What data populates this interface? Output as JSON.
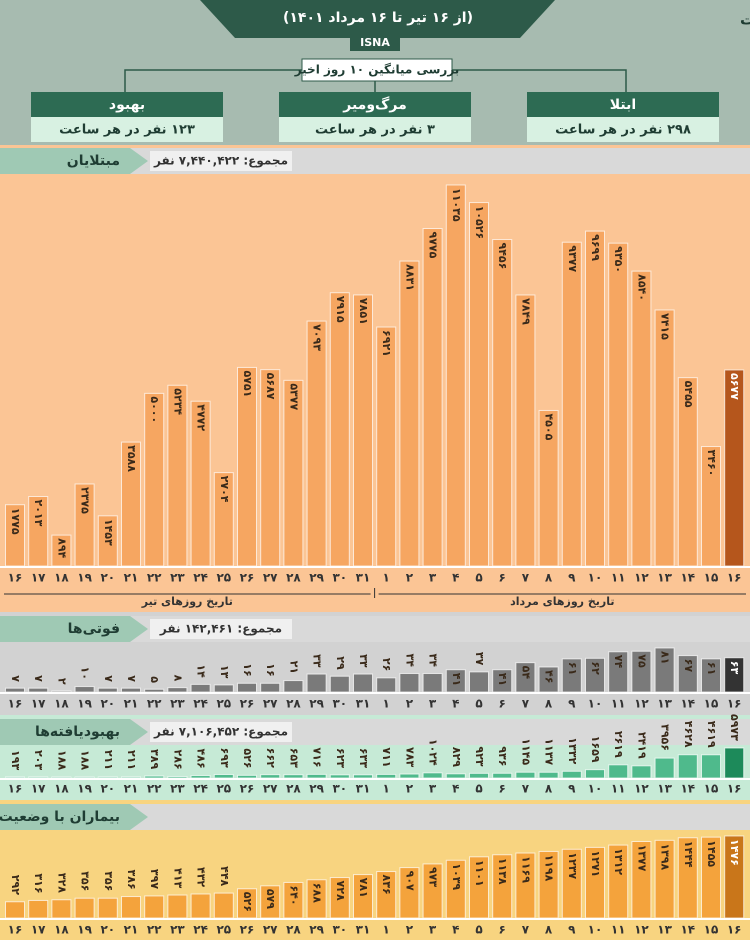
{
  "header": {
    "title": "اعداد بر حسب نفر است",
    "subtitle": "(از ۱۶ تیر تا ۱۶ مرداد ۱۴۰۱)",
    "source": "ISNA",
    "summary_title": "بررسی میانگین ۱۰ روز اخیر",
    "boxes": [
      {
        "label": "ابتلا",
        "text": "۲۹۸ نفر در هر ساعت"
      },
      {
        "label": "مرگ‌ومیر",
        "text": "۳ نفر در هر ساعت"
      },
      {
        "label": "بهبود",
        "text": "۱۲۳ نفر در هر ساعت"
      }
    ]
  },
  "chart_data": [
    {
      "type": "bar",
      "title": "مبتلایان",
      "total": "مجموع: ۷,۴۴۰,۴۲۲ نفر",
      "categories": [
        "۱۶",
        "۱۷",
        "۱۸",
        "۱۹",
        "۲۰",
        "۲۱",
        "۲۲",
        "۲۳",
        "۲۴",
        "۲۵",
        "۲۶",
        "۲۷",
        "۲۸",
        "۲۹",
        "۳۰",
        "۳۱",
        "۱",
        "۲",
        "۳",
        "۴",
        "۵",
        "۶",
        "۷",
        "۸",
        "۹",
        "۱۰",
        "۱۱",
        "۱۲",
        "۱۳",
        "۱۴",
        "۱۵",
        "۱۶"
      ],
      "values": [
        1775,
        2013,
        894,
        2375,
        1453,
        3588,
        5000,
        5234,
        4772,
        2704,
        5751,
        5687,
        5377,
        7093,
        7915,
        7851,
        6921,
        8831,
        9775,
        11035,
        10526,
        9456,
        7849,
        4505,
        9377,
        9699,
        9350,
        8540,
        7415,
        5455,
        3460,
        5677
      ],
      "value_labels": [
        "۱۷۷۵",
        "۲۰۱۳",
        "۸۹۴",
        "۲۳۷۵",
        "۱۴۵۳",
        "۳۵۸۸",
        "۵۰۰۰",
        "۵۲۳۴",
        "۴۷۷۲",
        "۲۷۰۴",
        "۵۷۵۱",
        "۵۶۸۷",
        "۵۳۷۷",
        "۷۰۹۳",
        "۷۹۱۵",
        "۷۸۵۱",
        "۶۹۲۱",
        "۸۸۳۱",
        "۹۷۷۵",
        "۱۱۰۳۵",
        "۱۰۵۲۶",
        "۹۴۵۶",
        "۷۸۴۹",
        "۴۵۰۵",
        "۹۳۷۷",
        "۹۶۹۹",
        "۹۳۵۰",
        "۸۵۴۰",
        "۷۴۱۵",
        "۵۴۵۵",
        "۳۴۶۰",
        "۵۶۷۷"
      ],
      "month_labels": [
        "تاریخ روزهای تیر",
        "تاریخ روزهای مرداد"
      ],
      "color": "#f6a661",
      "last_bar_color": "#b5561c",
      "background": "#fbc595"
    },
    {
      "type": "bar",
      "title": "فوتی‌ها",
      "total": "مجموع: ۱۴۲,۴۶۱ نفر",
      "categories": [
        "۱۶",
        "۱۷",
        "۱۸",
        "۱۹",
        "۲۰",
        "۲۱",
        "۲۲",
        "۲۳",
        "۲۴",
        "۲۵",
        "۲۶",
        "۲۷",
        "۲۸",
        "۲۹",
        "۳۰",
        "۳۱",
        "۱",
        "۲",
        "۳",
        "۴",
        "۵",
        "۶",
        "۷",
        "۸",
        "۹",
        "۱۰",
        "۱۱",
        "۱۲",
        "۱۳",
        "۱۴",
        "۱۵",
        "۱۶"
      ],
      "values": [
        7,
        7,
        2,
        10,
        7,
        7,
        5,
        8,
        14,
        13,
        16,
        16,
        21,
        33,
        29,
        33,
        26,
        34,
        34,
        41,
        37,
        41,
        54,
        46,
        61,
        62,
        74,
        75,
        81,
        67,
        61,
        63
      ],
      "value_labels": [
        "۷",
        "۷",
        "۲",
        "۱۰",
        "۷",
        "۷",
        "۵",
        "۸",
        "۱۴",
        "۱۳",
        "۱۶",
        "۱۶",
        "۲۱",
        "۳۳",
        "۲۹",
        "۳۳",
        "۲۶",
        "۳۴",
        "۳۴",
        "۴۱",
        "۳۷",
        "۴۱",
        "۵۴",
        "۴۶",
        "۶۱",
        "۶۲",
        "۷۴",
        "۷۵",
        "۸۱",
        "۶۷",
        "۶۱",
        "۶۳"
      ],
      "color": "#7a7a7a",
      "last_bar_color": "#333333",
      "background": "#d2d2d2"
    },
    {
      "type": "bar",
      "title": "بهبودیافته‌ها",
      "total": "مجموع: ۷,۱۰۶,۴۵۲ نفر",
      "categories": [
        "۱۶",
        "۱۷",
        "۱۸",
        "۱۹",
        "۲۰",
        "۲۱",
        "۲۲",
        "۲۳",
        "۲۴",
        "۲۵",
        "۲۶",
        "۲۷",
        "۲۸",
        "۲۹",
        "۳۰",
        "۳۱",
        "۱",
        "۲",
        "۳",
        "۴",
        "۵",
        "۶",
        "۷",
        "۸",
        "۹",
        "۱۰",
        "۱۱",
        "۱۲",
        "۱۳",
        "۱۴",
        "۱۵",
        "۱۶"
      ],
      "values": [
        193,
        203,
        188,
        188,
        211,
        211,
        389,
        286,
        486,
        693,
        526,
        662,
        653,
        716,
        623,
        633,
        711,
        783,
        1024,
        829,
        923,
        936,
        1145,
        1137,
        1332,
        1659,
        2619,
        2419,
        3956,
        4628,
        4619,
        5973
      ],
      "value_labels": [
        "۱۹۳",
        "۲۰۳",
        "۱۸۸",
        "۱۸۸",
        "۲۱۱",
        "۲۱۱",
        "۳۸۹",
        "۲۸۶",
        "۴۸۶",
        "۶۹۳",
        "۵۲۶",
        "۶۶۲",
        "۶۵۳",
        "۷۱۶",
        "۶۲۳",
        "۶۳۳",
        "۷۱۱",
        "۷۸۳",
        "۱۰۲۴",
        "۸۲۹",
        "۹۲۳",
        "۹۳۶",
        "۱۱۴۵",
        "۱۱۳۷",
        "۱۳۳۲",
        "۱۶۵۹",
        "۲۶۱۹",
        "۲۴۱۹",
        "۳۹۵۶",
        "۴۶۲۸",
        "۴۶۱۹",
        "۵۹۷۳"
      ],
      "color": "#4fba8c",
      "last_bar_color": "#1d8a5a",
      "background": "#c6ead6"
    },
    {
      "type": "bar",
      "title": "بیماران با وضعیت حاد",
      "categories": [
        "۱۶",
        "۱۷",
        "۱۸",
        "۱۹",
        "۲۰",
        "۲۱",
        "۲۲",
        "۲۳",
        "۲۴",
        "۲۵",
        "۲۶",
        "۲۷",
        "۲۸",
        "۲۹",
        "۳۰",
        "۳۱",
        "۱",
        "۲",
        "۳",
        "۴",
        "۵",
        "۶",
        "۷",
        "۸",
        "۹",
        "۱۰",
        "۱۱",
        "۱۲",
        "۱۳",
        "۱۴",
        "۱۵",
        "۱۶"
      ],
      "values": [
        292,
        316,
        328,
        356,
        356,
        386,
        397,
        413,
        432,
        448,
        526,
        579,
        640,
        688,
        728,
        781,
        836,
        907,
        973,
        1039,
        1101,
        1138,
        1169,
        1198,
        1237,
        1271,
        1312,
        1377,
        1398,
        1444,
        1455,
        1476
      ],
      "value_labels": [
        "۲۹۲",
        "۳۱۶",
        "۳۲۸",
        "۳۵۶",
        "۳۵۶",
        "۳۸۶",
        "۳۹۷",
        "۴۱۳",
        "۴۳۲",
        "۴۴۸",
        "۵۲۶",
        "۵۷۹",
        "۶۴۰",
        "۶۸۸",
        "۷۲۸",
        "۷۸۱",
        "۸۳۶",
        "۹۰۷",
        "۹۷۳",
        "۱۰۳۹",
        "۱۱۰۱",
        "۱۱۳۸",
        "۱۱۶۹",
        "۱۱۹۸",
        "۱۲۳۷",
        "۱۲۷۱",
        "۱۳۱۲",
        "۱۳۷۷",
        "۱۳۹۸",
        "۱۴۴۴",
        "۱۴۵۵",
        "۱۴۷۶"
      ],
      "color": "#f4a33c",
      "last_bar_color": "#c9761a",
      "background": "#f8d480"
    }
  ]
}
